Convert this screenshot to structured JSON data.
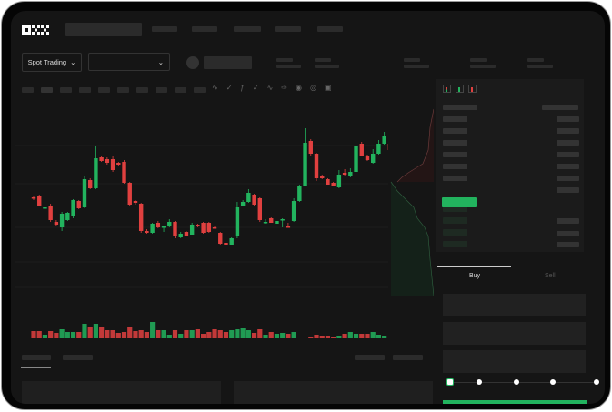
{
  "brand": {
    "logo_text": "OKX"
  },
  "toolbar": {
    "market_select_label": "Spot Trading",
    "pair_select_value": ""
  },
  "trade_panel": {
    "buy_tab": "Buy",
    "sell_tab": "Sell",
    "active_tab": "Buy",
    "leverage_slider_value": 0,
    "slider_stops": 5
  },
  "colors": {
    "up": "#22b35e",
    "down": "#e0403f",
    "background": "#151515"
  },
  "icons": [
    "chevron-down-icon",
    "indicator-icon",
    "draw-icon",
    "camera-icon",
    "settings-icon",
    "fullscreen-icon",
    "orderbook-both-icon",
    "orderbook-bids-icon",
    "orderbook-asks-icon"
  ],
  "chart_data": {
    "type": "candlestick",
    "title": "",
    "candles": [
      [
        95,
        97,
        92,
        94
      ],
      [
        97,
        98,
        85,
        86
      ],
      [
        83,
        85,
        81,
        84
      ],
      [
        85,
        88,
        68,
        70
      ],
      [
        68,
        70,
        63,
        65
      ],
      [
        62,
        79,
        58,
        77
      ],
      [
        70,
        79,
        69,
        78
      ],
      [
        74,
        93,
        72,
        92
      ],
      [
        91,
        92,
        82,
        83
      ],
      [
        84,
        119,
        83,
        115
      ],
      [
        114,
        116,
        104,
        105
      ],
      [
        105,
        152,
        104,
        138
      ],
      [
        139,
        140,
        134,
        135
      ],
      [
        137,
        139,
        131,
        133
      ],
      [
        137,
        140,
        123,
        125
      ],
      [
        133,
        134,
        130,
        131
      ],
      [
        134,
        136,
        110,
        111
      ],
      [
        111,
        112,
        86,
        87
      ],
      [
        91,
        92,
        87,
        89
      ],
      [
        88,
        89,
        56,
        58
      ],
      [
        58,
        60,
        55,
        56
      ],
      [
        56,
        67,
        55,
        66
      ],
      [
        67,
        69,
        61,
        62
      ],
      [
        62,
        63,
        57,
        63
      ],
      [
        63,
        71,
        62,
        68
      ],
      [
        68,
        69,
        50,
        52
      ],
      [
        51,
        57,
        50,
        55
      ],
      [
        57,
        58,
        52,
        53
      ],
      [
        54,
        67,
        54,
        65
      ],
      [
        65,
        66,
        62,
        63
      ],
      [
        67,
        68,
        55,
        56
      ],
      [
        67,
        68,
        56,
        57
      ],
      [
        62,
        63,
        61,
        61
      ],
      [
        56,
        57,
        43,
        44
      ],
      [
        45,
        47,
        43,
        43
      ],
      [
        43,
        51,
        43,
        50
      ],
      [
        52,
        90,
        50,
        84
      ],
      [
        86,
        92,
        85,
        90
      ],
      [
        90,
        104,
        89,
        100
      ],
      [
        98,
        99,
        86,
        87
      ],
      [
        94,
        95,
        68,
        70
      ],
      [
        68,
        71,
        66,
        68
      ],
      [
        72,
        73,
        67,
        67
      ],
      [
        66,
        69,
        66,
        69
      ],
      [
        71,
        72,
        62,
        71
      ],
      [
        63,
        67,
        62,
        62
      ],
      [
        69,
        94,
        68,
        91
      ],
      [
        91,
        109,
        90,
        108
      ],
      [
        108,
        171,
        107,
        155
      ],
      [
        157,
        159,
        141,
        143
      ],
      [
        143,
        144,
        113,
        116
      ],
      [
        118,
        120,
        115,
        116
      ],
      [
        115,
        116,
        109,
        109
      ],
      [
        111,
        112,
        107,
        108
      ],
      [
        106,
        125,
        105,
        120
      ],
      [
        122,
        126,
        119,
        120
      ],
      [
        118,
        127,
        117,
        123
      ],
      [
        123,
        156,
        122,
        152
      ],
      [
        154,
        156,
        140,
        141
      ],
      [
        141,
        142,
        135,
        136
      ],
      [
        133,
        148,
        132,
        143
      ],
      [
        143,
        158,
        142,
        154
      ],
      [
        154,
        167,
        153,
        163
      ],
      [
        154,
        155,
        146,
        147
      ],
      [
        144,
        156,
        142,
        151
      ]
    ],
    "volumes": [
      12,
      12,
      8,
      12,
      10,
      14,
      11,
      11,
      11,
      20,
      16,
      20,
      16,
      13,
      13,
      10,
      11,
      16,
      12,
      13,
      11,
      22,
      13,
      13,
      8,
      13,
      9,
      13,
      13,
      14,
      9,
      11,
      14,
      13,
      11,
      13,
      14,
      15,
      13,
      10,
      14,
      8,
      11,
      9,
      10,
      9,
      11,
      2,
      3,
      5,
      8,
      7,
      7,
      6,
      7,
      9,
      11,
      9,
      9,
      9,
      11,
      8,
      7,
      4,
      5
    ],
    "grid": true
  }
}
